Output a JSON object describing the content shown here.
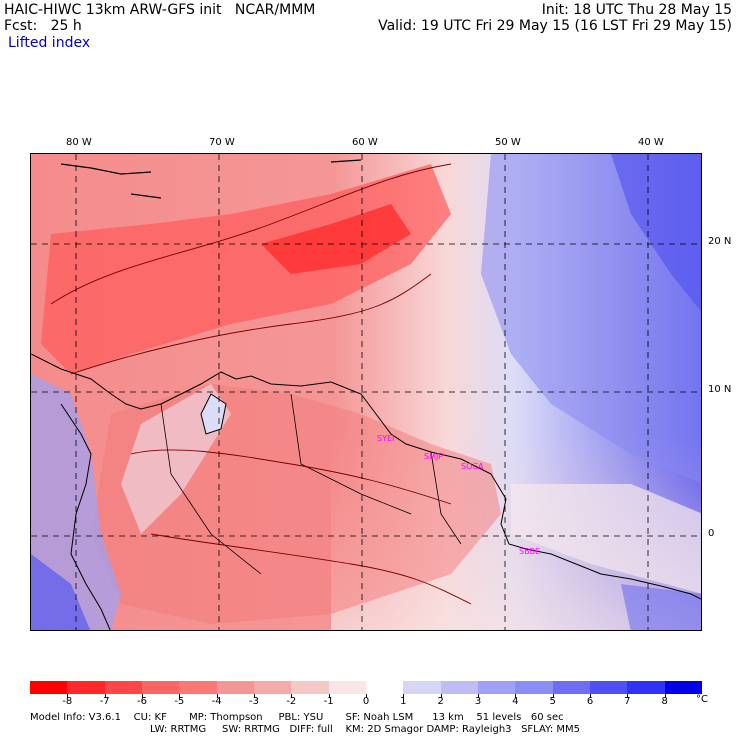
{
  "header": {
    "line1_left": "HAIC-HIWC 13km ARW-GFS init   NCAR/MMM",
    "line1_right": "Init: 18 UTC Thu 28 May 15",
    "line2_left": "Fcst:   25 h",
    "line2_right": "Valid: 19 UTC Fri 29 May 15 (16 LST Fri 29 May 15)",
    "field": "Lifted index"
  },
  "map": {
    "lon_labels": [
      "80 W",
      "70 W",
      "60 W",
      "50 W",
      "40 W"
    ],
    "lat_labels": [
      "20 N",
      "10 N",
      "0"
    ],
    "stations": [
      "SYEI",
      "SMJP",
      "SOCA",
      "SBBE"
    ],
    "station_color": "#ff00ff"
  },
  "colorbar": {
    "ticks": [
      "-8",
      "-7",
      "-6",
      "-5",
      "-4",
      "-3",
      "-2",
      "-1",
      "0",
      "1",
      "2",
      "3",
      "4",
      "5",
      "6",
      "7",
      "8"
    ],
    "unit": "°C",
    "colors": [
      "#ff0000",
      "#ff2828",
      "#ff4646",
      "#ff6464",
      "#fa7878",
      "#f59696",
      "#f5aaaa",
      "#f5c8c8",
      "#fae6e6",
      "#ffffff",
      "#d7d7f5",
      "#bebef5",
      "#a0a0f5",
      "#8c8cf5",
      "#6e6ef5",
      "#5050f5",
      "#3232f5",
      "#0000e6"
    ]
  },
  "footer": {
    "line1": "Model Info: V3.6.1    CU: KF       MP: Thompson     PBL: YSU       SF: Noah LSM      13 km    51 levels   60 sec",
    "line2": "LW: RRTMG     SW: RRTMG   DIFF: full    KM: 2D Smagor DAMP: Rayleigh3   SFLAY: MM5"
  }
}
